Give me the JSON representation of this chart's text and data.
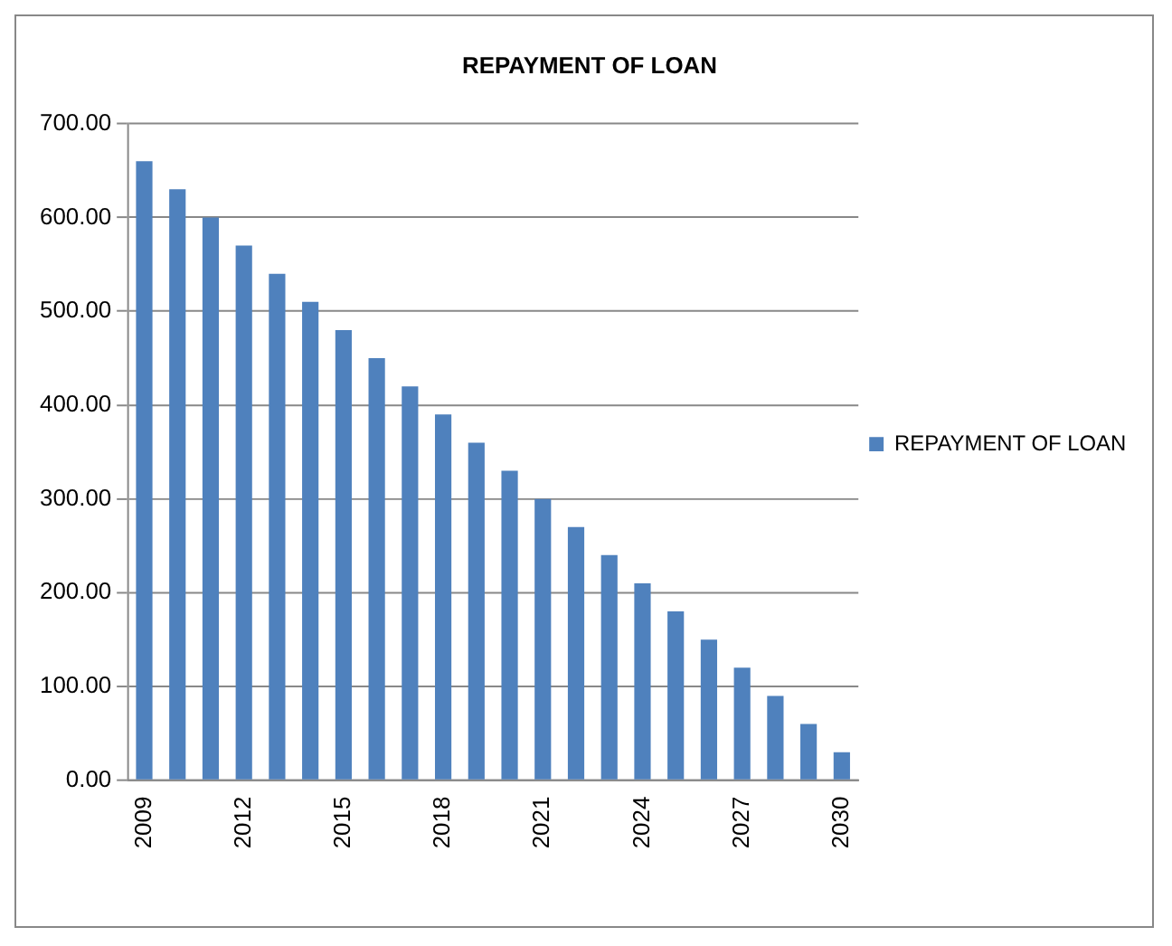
{
  "chart_data": {
    "type": "bar",
    "title": "REPAYMENT OF LOAN",
    "categories": [
      "2009",
      null,
      null,
      "2012",
      null,
      null,
      "2015",
      null,
      null,
      "2018",
      null,
      null,
      "2021",
      null,
      null,
      "2024",
      null,
      null,
      "2027",
      null,
      null,
      "2030"
    ],
    "series": [
      {
        "name": "REPAYMENT OF LOAN",
        "color": "#4f81bd",
        "values": [
          660,
          630,
          600,
          570,
          540,
          510,
          480,
          450,
          420,
          390,
          360,
          330,
          300,
          270,
          240,
          210,
          180,
          150,
          120,
          90,
          60,
          30
        ]
      }
    ],
    "ylim": [
      0,
      700
    ],
    "yticks": [
      {
        "value": 0,
        "label": "0.00"
      },
      {
        "value": 100,
        "label": "100.00"
      },
      {
        "value": 200,
        "label": "200.00"
      },
      {
        "value": 300,
        "label": "300.00"
      },
      {
        "value": 400,
        "label": "400.00"
      },
      {
        "value": 500,
        "label": "500.00"
      },
      {
        "value": 600,
        "label": "600.00"
      },
      {
        "value": 700,
        "label": "700.00"
      }
    ],
    "grid": "y",
    "legend": "right"
  }
}
